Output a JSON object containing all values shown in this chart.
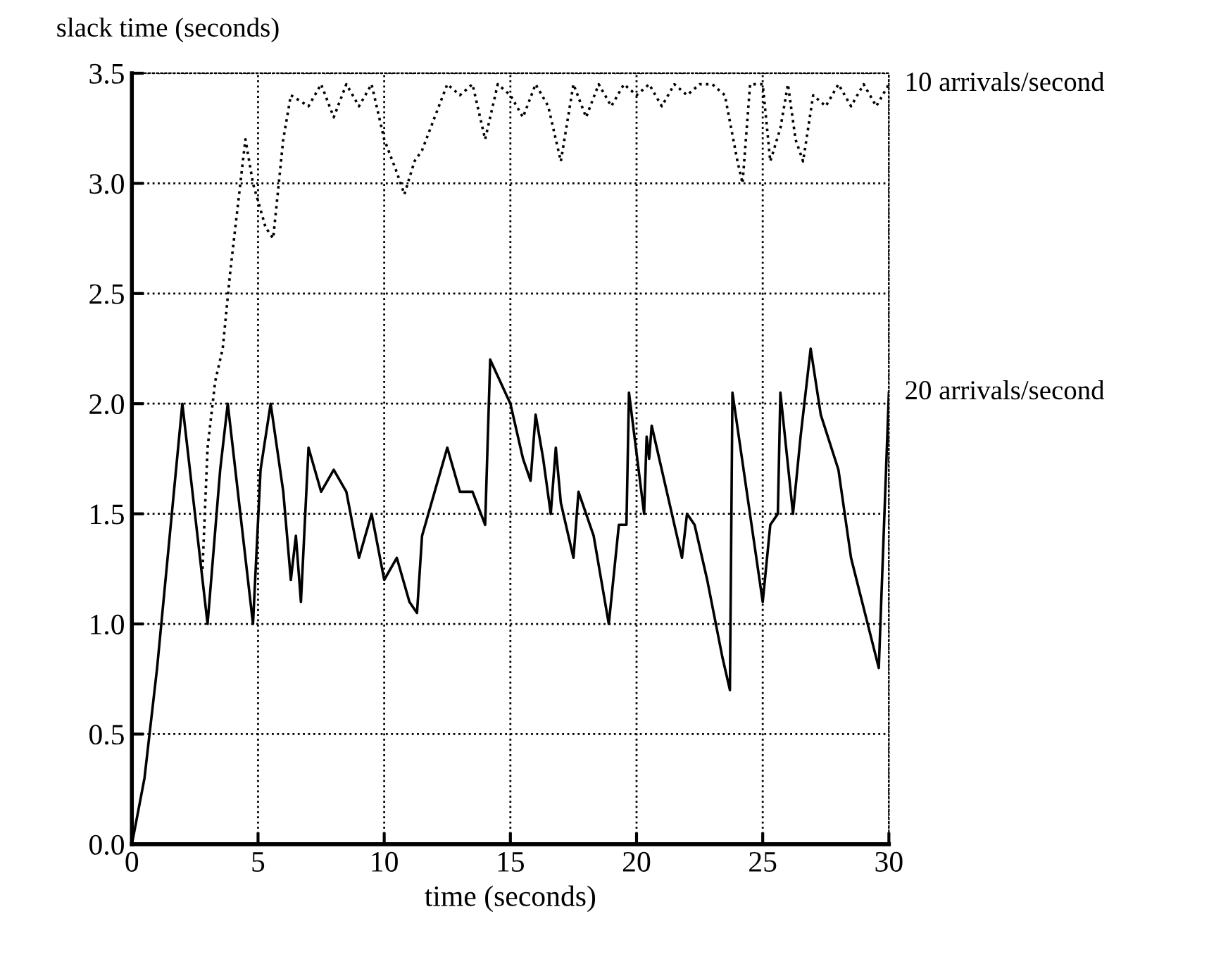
{
  "chart_data": {
    "type": "line",
    "xlabel": "time (seconds)",
    "ylabel": "slack time (seconds)",
    "xlim": [
      0,
      30
    ],
    "ylim": [
      0,
      3.5
    ],
    "xticks": [
      0,
      5,
      10,
      15,
      20,
      25,
      30
    ],
    "yticks": [
      {
        "value": 0,
        "label": "0.0"
      },
      {
        "value": 0.5,
        "label": "0.5"
      },
      {
        "value": 1,
        "label": "1.0"
      },
      {
        "value": 1.5,
        "label": "1.5"
      },
      {
        "value": 2,
        "label": "2.0"
      },
      {
        "value": 2.5,
        "label": "2.5"
      },
      {
        "value": 3,
        "label": "3.0"
      },
      {
        "value": 3.5,
        "label": "3.5"
      }
    ],
    "grid": true,
    "legend": false,
    "marker": "none",
    "series": [
      {
        "name": "10 arrivals/second",
        "color": "#000000",
        "line_style": "dotted",
        "x": [
          2.8,
          3.0,
          3.3,
          3.6,
          3.9,
          4.2,
          4.5,
          4.8,
          5.3,
          5.6,
          6.0,
          6.3,
          7.0,
          7.5,
          8.0,
          8.5,
          9.0,
          9.5,
          10.0,
          10.5,
          10.8,
          11.2,
          11.5,
          12.0,
          12.5,
          13.0,
          13.5,
          14.0,
          14.5,
          15.0,
          15.5,
          16.0,
          16.5,
          17.0,
          17.5,
          18.0,
          18.5,
          19.0,
          19.5,
          20.0,
          20.5,
          21.0,
          21.5,
          22.0,
          22.5,
          23.0,
          23.5,
          24.0,
          24.2,
          24.5,
          25.0,
          25.3,
          25.7,
          26.0,
          26.3,
          26.6,
          27.0,
          27.5,
          28.0,
          28.5,
          29.0,
          29.5,
          30.0
        ],
        "values": [
          1.25,
          1.8,
          2.1,
          2.25,
          2.6,
          2.9,
          3.2,
          3.0,
          2.8,
          2.75,
          3.2,
          3.4,
          3.35,
          3.45,
          3.3,
          3.45,
          3.35,
          3.45,
          3.2,
          3.05,
          2.95,
          3.1,
          3.15,
          3.3,
          3.45,
          3.4,
          3.45,
          3.2,
          3.45,
          3.4,
          3.3,
          3.45,
          3.35,
          3.1,
          3.45,
          3.3,
          3.45,
          3.35,
          3.45,
          3.4,
          3.45,
          3.35,
          3.45,
          3.4,
          3.45,
          3.45,
          3.4,
          3.1,
          3.0,
          3.45,
          3.45,
          3.1,
          3.25,
          3.45,
          3.2,
          3.1,
          3.4,
          3.35,
          3.45,
          3.35,
          3.45,
          3.35,
          3.45
        ]
      },
      {
        "name": "20 arrivals/second",
        "color": "#000000",
        "line_style": "solid",
        "x": [
          0,
          0.5,
          1.0,
          1.5,
          2.0,
          2.5,
          3.0,
          3.5,
          3.8,
          4.8,
          5.1,
          5.5,
          6.0,
          6.3,
          6.5,
          6.7,
          7.0,
          7.5,
          8.0,
          8.5,
          9.0,
          9.5,
          10.0,
          10.5,
          11.0,
          11.3,
          11.5,
          12.0,
          12.5,
          13.0,
          13.5,
          14.0,
          14.2,
          15.0,
          15.5,
          15.8,
          16.0,
          16.3,
          16.6,
          16.8,
          17.0,
          17.5,
          17.7,
          18.3,
          18.9,
          19.3,
          19.6,
          19.7,
          20.3,
          20.4,
          20.5,
          20.6,
          21.2,
          21.8,
          22.0,
          22.3,
          22.8,
          23.4,
          23.7,
          23.8,
          25.0,
          25.3,
          25.6,
          25.7,
          26.2,
          26.5,
          26.9,
          27.3,
          28.0,
          28.5,
          29.6,
          30.0
        ],
        "values": [
          0,
          0.3,
          0.8,
          1.4,
          2.0,
          1.5,
          1.0,
          1.7,
          2.0,
          1.0,
          1.7,
          2.0,
          1.6,
          1.2,
          1.4,
          1.1,
          1.8,
          1.6,
          1.7,
          1.6,
          1.3,
          1.5,
          1.2,
          1.3,
          1.1,
          1.05,
          1.4,
          1.6,
          1.8,
          1.6,
          1.6,
          1.45,
          2.2,
          2.0,
          1.75,
          1.65,
          1.95,
          1.75,
          1.5,
          1.8,
          1.55,
          1.3,
          1.6,
          1.4,
          1.0,
          1.45,
          1.45,
          2.05,
          1.5,
          1.85,
          1.75,
          1.9,
          1.6,
          1.3,
          1.5,
          1.45,
          1.2,
          0.85,
          0.7,
          2.05,
          1.1,
          1.45,
          1.5,
          2.05,
          1.5,
          1.85,
          2.25,
          1.95,
          1.7,
          1.3,
          0.8,
          2.05
        ]
      }
    ]
  }
}
